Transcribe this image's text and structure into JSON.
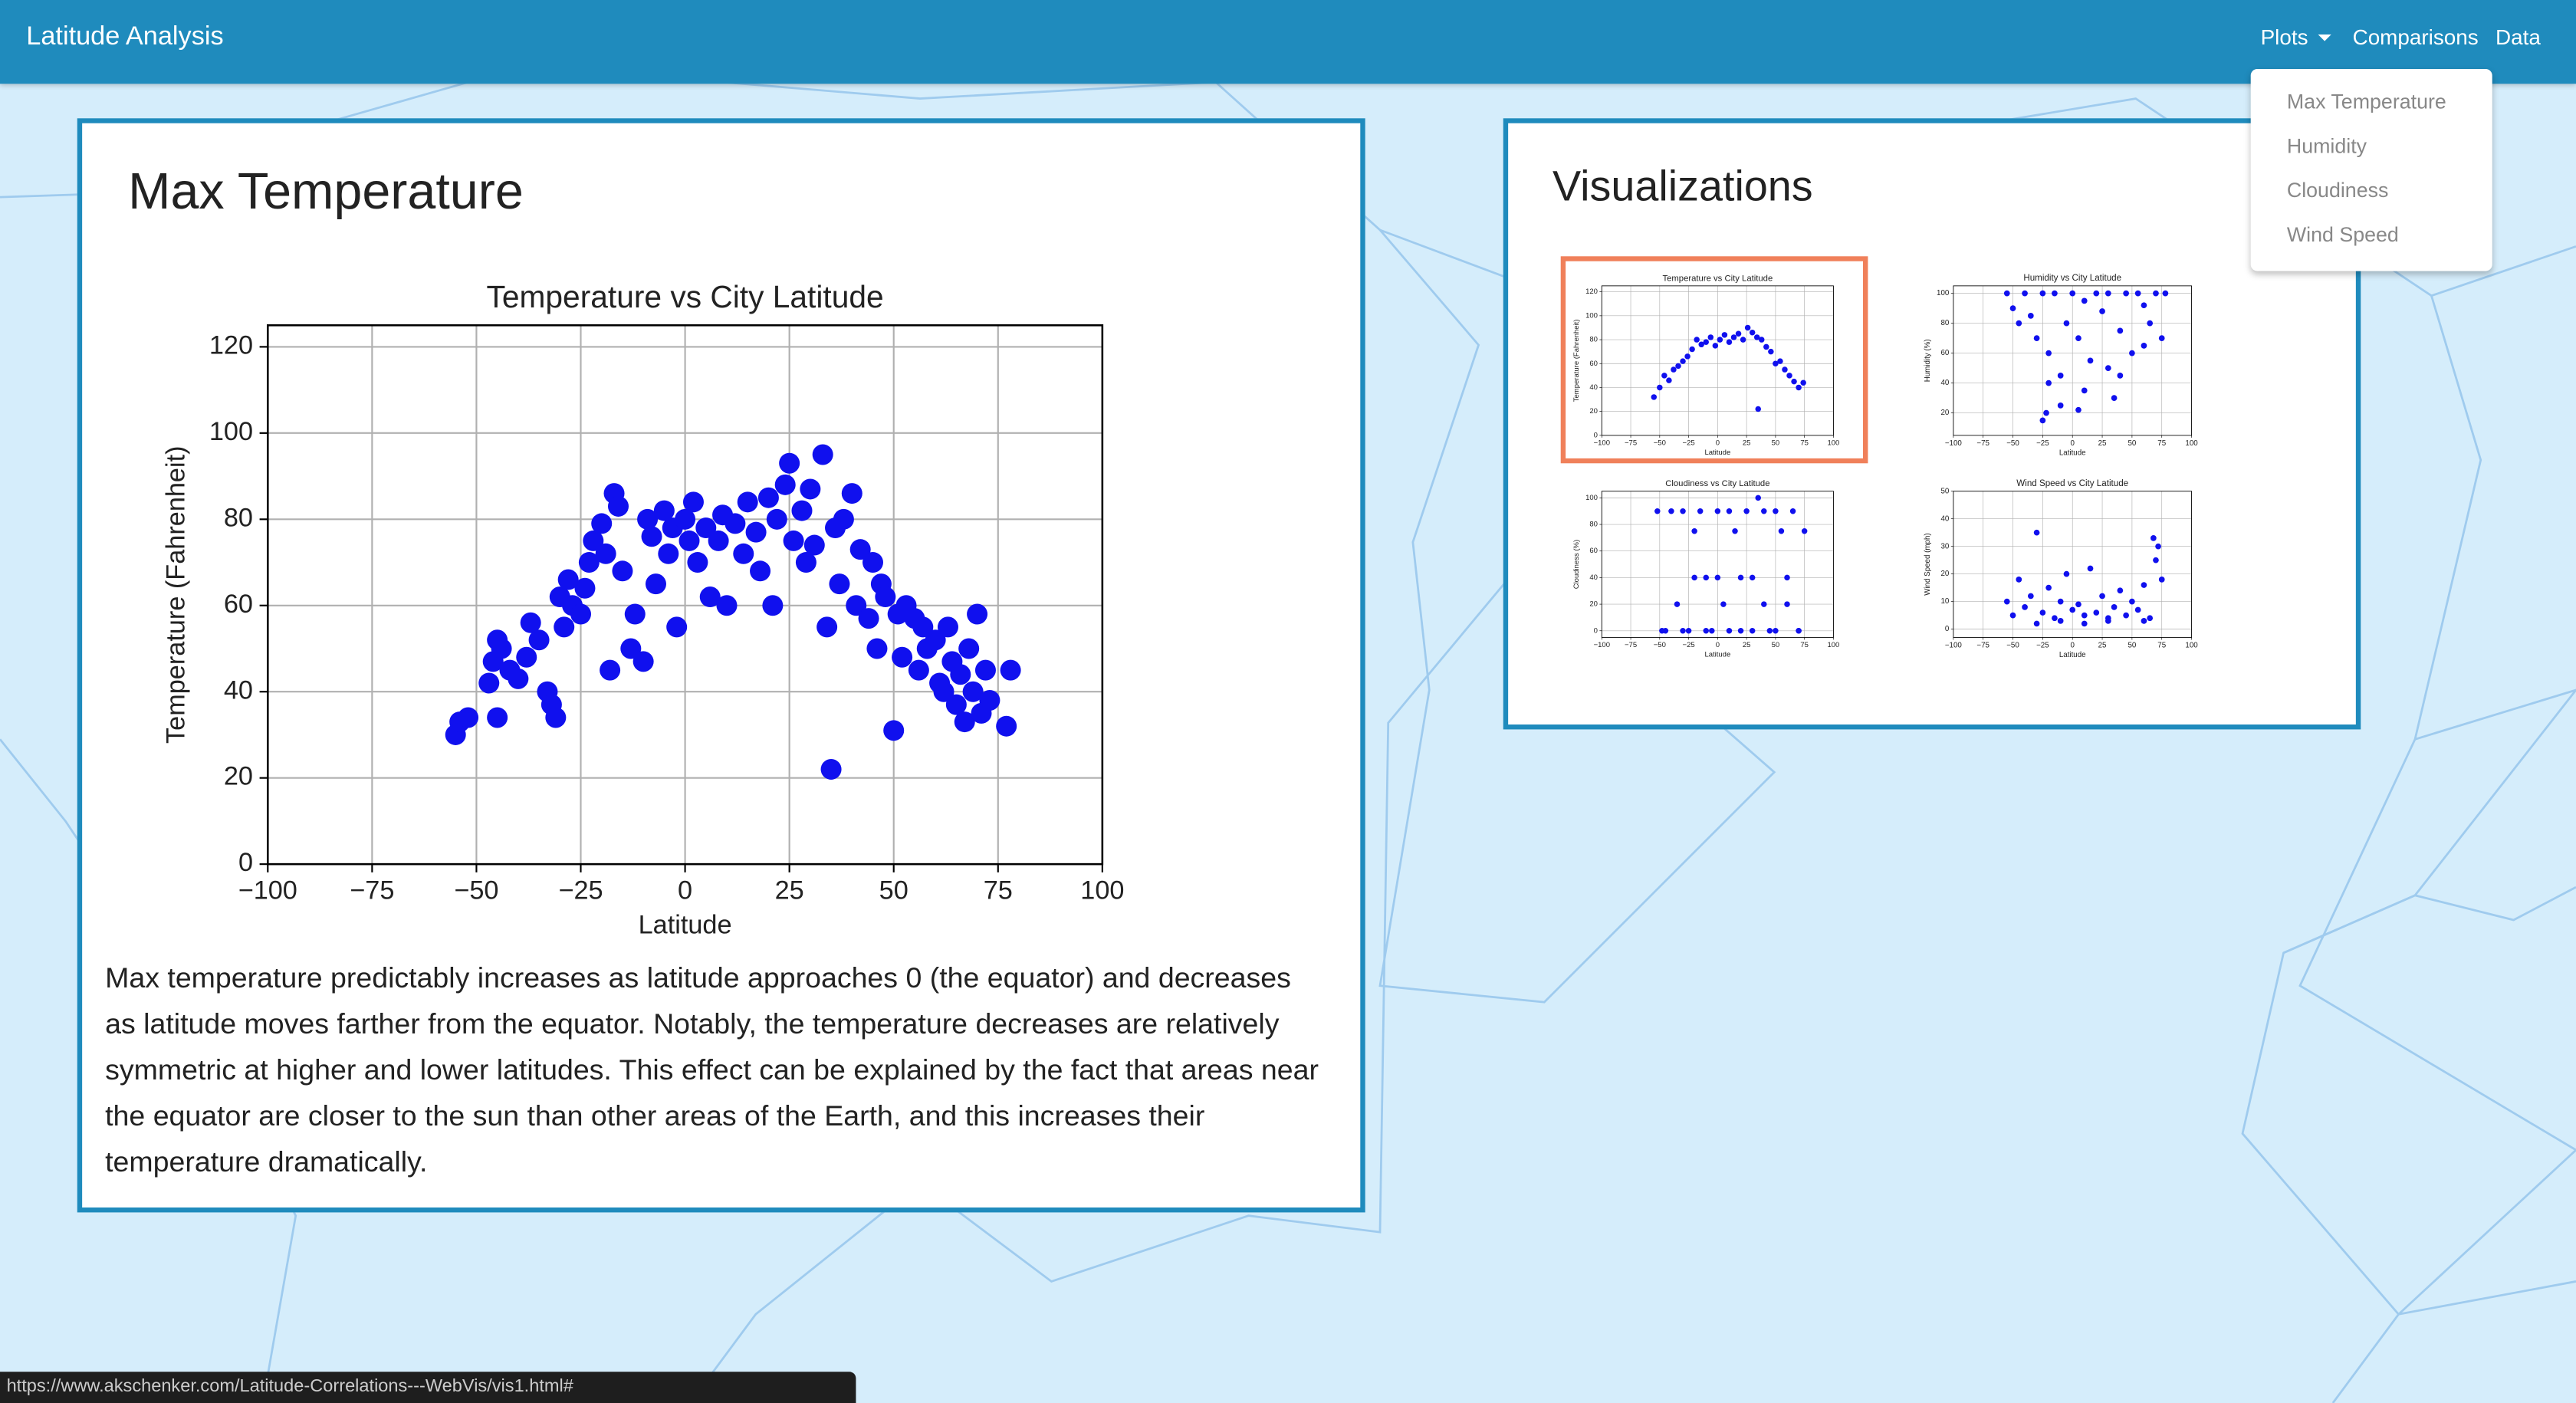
{
  "navbar": {
    "brand": "Latitude Analysis",
    "links": [
      "Plots",
      "Comparisons",
      "Data"
    ]
  },
  "dropdown": [
    "Max Temperature",
    "Humidity",
    "Cloudiness",
    "Wind Speed"
  ],
  "main_card": {
    "heading": "Max Temperature",
    "paragraph": "Max temperature predictably increases as latitude approaches 0 (the equator) and decreases as latitude moves farther from the equator. Notably, the temperature decreases are relatively symmetric at higher and lower latitudes. This effect can be explained by the fact that areas near the equator are closer to the sun than other areas of the Earth, and this increases their temperature dramatically."
  },
  "visualizations": {
    "heading": "Visualizations"
  },
  "status_bar": {
    "url": "https://www.akschenker.com/Latitude-Correlations---WebVis/vis1.html#"
  },
  "chart_data": [
    {
      "type": "scatter",
      "title": "Temperature vs City Latitude",
      "x_label": "Latitude",
      "y_label": "Temperature (Fahrenheit)",
      "color": "#1010ee",
      "grid": true,
      "xlim": [
        -100,
        100
      ],
      "ylim": [
        0,
        125
      ],
      "xticks": [
        {
          "value": -100,
          "label": "−100"
        },
        {
          "value": -75,
          "label": "−75"
        },
        {
          "value": -50,
          "label": "−50"
        },
        {
          "value": -25,
          "label": "−25"
        },
        0,
        25,
        50,
        75,
        100
      ],
      "yticks": [
        0,
        20,
        40,
        60,
        80,
        100,
        120
      ],
      "x": [
        -55,
        -54,
        -52,
        -45,
        -47,
        -46,
        -45,
        -44,
        -42,
        -40,
        -38,
        -37,
        -35,
        -33,
        -32,
        -31,
        -30,
        -29,
        -28,
        -27,
        -25,
        -24,
        -23,
        -22,
        -20,
        -19,
        -18,
        -17,
        -16,
        -15,
        -13,
        -12,
        -10,
        -9,
        -8,
        -7,
        -5,
        -4,
        -3,
        -2,
        0,
        1,
        2,
        3,
        5,
        6,
        8,
        9,
        10,
        12,
        14,
        15,
        17,
        18,
        20,
        21,
        22,
        24,
        25,
        26,
        28,
        29,
        30,
        31,
        33,
        34,
        35,
        36,
        37,
        38,
        40,
        41,
        42,
        44,
        45,
        46,
        47,
        48,
        50,
        51,
        52,
        53,
        55,
        56,
        57,
        58,
        60,
        61,
        62,
        63,
        64,
        65,
        66,
        67,
        68,
        69,
        70,
        71,
        72,
        73,
        77,
        78
      ],
      "values": [
        30,
        33,
        34,
        34,
        42,
        47,
        52,
        50,
        45,
        43,
        48,
        56,
        52,
        40,
        37,
        34,
        62,
        55,
        66,
        60,
        58,
        64,
        70,
        75,
        79,
        72,
        45,
        86,
        83,
        68,
        50,
        58,
        47,
        80,
        76,
        65,
        82,
        72,
        78,
        55,
        80,
        75,
        84,
        70,
        78,
        62,
        75,
        81,
        60,
        79,
        72,
        84,
        77,
        68,
        85,
        60,
        80,
        88,
        93,
        75,
        82,
        70,
        87,
        74,
        95,
        55,
        22,
        78,
        65,
        80,
        86,
        60,
        73,
        57,
        70,
        50,
        65,
        62,
        31,
        58,
        48,
        60,
        57,
        45,
        55,
        50,
        52,
        42,
        40,
        55,
        47,
        37,
        44,
        33,
        50,
        40,
        58,
        35,
        45,
        38,
        32,
        45
      ]
    },
    {
      "type": "scatter",
      "title": "Temperature vs City Latitude",
      "x_label": "Latitude",
      "y_label": "Temperature (Fahrenheit)",
      "color": "#1010ee",
      "grid": true,
      "xlim": [
        -100,
        100
      ],
      "ylim": [
        0,
        125
      ],
      "xticks": [
        {
          "value": -100,
          "label": "−100"
        },
        {
          "value": -75,
          "label": "−75"
        },
        {
          "value": -50,
          "label": "−50"
        },
        {
          "value": -25,
          "label": "−25"
        },
        0,
        25,
        50,
        75,
        100
      ],
      "yticks": [
        0,
        20,
        40,
        60,
        80,
        100,
        120
      ],
      "x": [
        -55,
        -50,
        -46,
        -42,
        -38,
        -34,
        -30,
        -26,
        -22,
        -18,
        -14,
        -10,
        -6,
        -2,
        2,
        6,
        10,
        14,
        18,
        22,
        26,
        30,
        34,
        35,
        38,
        42,
        46,
        50,
        54,
        58,
        62,
        66,
        70,
        74
      ],
      "values": [
        32,
        40,
        50,
        46,
        55,
        58,
        62,
        66,
        72,
        80,
        76,
        78,
        82,
        75,
        80,
        84,
        78,
        82,
        85,
        80,
        90,
        86,
        82,
        22,
        80,
        74,
        70,
        60,
        62,
        55,
        50,
        45,
        40,
        44
      ]
    },
    {
      "type": "scatter",
      "title": "Humidity vs City Latitude",
      "x_label": "Latitude",
      "y_label": "Humidity (%)",
      "color": "#1010ee",
      "grid": true,
      "xlim": [
        -100,
        100
      ],
      "ylim": [
        5,
        105
      ],
      "xticks": [
        {
          "value": -100,
          "label": "−100"
        },
        {
          "value": -75,
          "label": "−75"
        },
        {
          "value": -50,
          "label": "−50"
        },
        {
          "value": -25,
          "label": "−25"
        },
        0,
        25,
        50,
        75,
        100
      ],
      "yticks": [
        20,
        40,
        60,
        80,
        100
      ],
      "x": [
        -55,
        -50,
        -45,
        -40,
        -35,
        -30,
        -25,
        -22,
        -20,
        -15,
        -10,
        -5,
        0,
        5,
        10,
        15,
        20,
        25,
        30,
        35,
        40,
        45,
        50,
        55,
        60,
        65,
        70,
        75,
        78,
        -20,
        -10,
        10,
        30,
        60,
        -25,
        5,
        40
      ],
      "values": [
        100,
        90,
        80,
        100,
        85,
        70,
        100,
        20,
        60,
        100,
        45,
        80,
        100,
        70,
        95,
        55,
        100,
        88,
        100,
        30,
        75,
        100,
        60,
        100,
        92,
        80,
        100,
        70,
        100,
        40,
        25,
        35,
        50,
        65,
        15,
        22,
        45
      ]
    },
    {
      "type": "scatter",
      "title": "Cloudiness vs City Latitude",
      "x_label": "Latitude",
      "y_label": "Cloudiness (%)",
      "color": "#1010ee",
      "grid": true,
      "xlim": [
        -100,
        100
      ],
      "ylim": [
        -5,
        105
      ],
      "xticks": [
        {
          "value": -100,
          "label": "−100"
        },
        {
          "value": -75,
          "label": "−75"
        },
        {
          "value": -50,
          "label": "−50"
        },
        {
          "value": -25,
          "label": "−25"
        },
        0,
        25,
        50,
        75,
        100
      ],
      "yticks": [
        0,
        20,
        40,
        60,
        80,
        100
      ],
      "x": [
        -52,
        -45,
        -40,
        -35,
        -30,
        -25,
        -20,
        -15,
        -10,
        -5,
        0,
        5,
        10,
        15,
        20,
        25,
        30,
        35,
        40,
        45,
        50,
        55,
        60,
        65,
        70,
        75,
        -48,
        -30,
        -10,
        10,
        30,
        50,
        70,
        -20,
        0,
        20,
        40,
        60
      ],
      "values": [
        90,
        0,
        90,
        20,
        90,
        0,
        75,
        90,
        40,
        0,
        90,
        20,
        90,
        75,
        0,
        90,
        40,
        100,
        90,
        0,
        90,
        75,
        20,
        90,
        0,
        75,
        0,
        0,
        0,
        0,
        0,
        0,
        0,
        40,
        40,
        40,
        20,
        40
      ]
    },
    {
      "type": "scatter",
      "title": "Wind Speed vs City Latitude",
      "x_label": "Latitude",
      "y_label": "Wind Speed (mph)",
      "color": "#1010ee",
      "grid": true,
      "xlim": [
        -100,
        100
      ],
      "ylim": [
        -3,
        50
      ],
      "xticks": [
        {
          "value": -100,
          "label": "−100"
        },
        {
          "value": -75,
          "label": "−75"
        },
        {
          "value": -50,
          "label": "−50"
        },
        {
          "value": -25,
          "label": "−25"
        },
        0,
        25,
        50,
        75,
        100
      ],
      "yticks": [
        0,
        10,
        20,
        30,
        40,
        50
      ],
      "x": [
        -55,
        -50,
        -45,
        -40,
        -35,
        -30,
        -25,
        -20,
        -15,
        -10,
        -5,
        0,
        5,
        10,
        15,
        20,
        25,
        30,
        35,
        40,
        45,
        50,
        55,
        60,
        65,
        70,
        75,
        -30,
        -10,
        10,
        30,
        60,
        68,
        72
      ],
      "values": [
        10,
        5,
        18,
        8,
        12,
        35,
        6,
        15,
        4,
        10,
        20,
        7,
        9,
        5,
        22,
        6,
        12,
        3,
        8,
        14,
        5,
        10,
        7,
        16,
        4,
        25,
        18,
        2,
        3,
        2,
        4,
        3,
        33,
        30
      ]
    }
  ]
}
